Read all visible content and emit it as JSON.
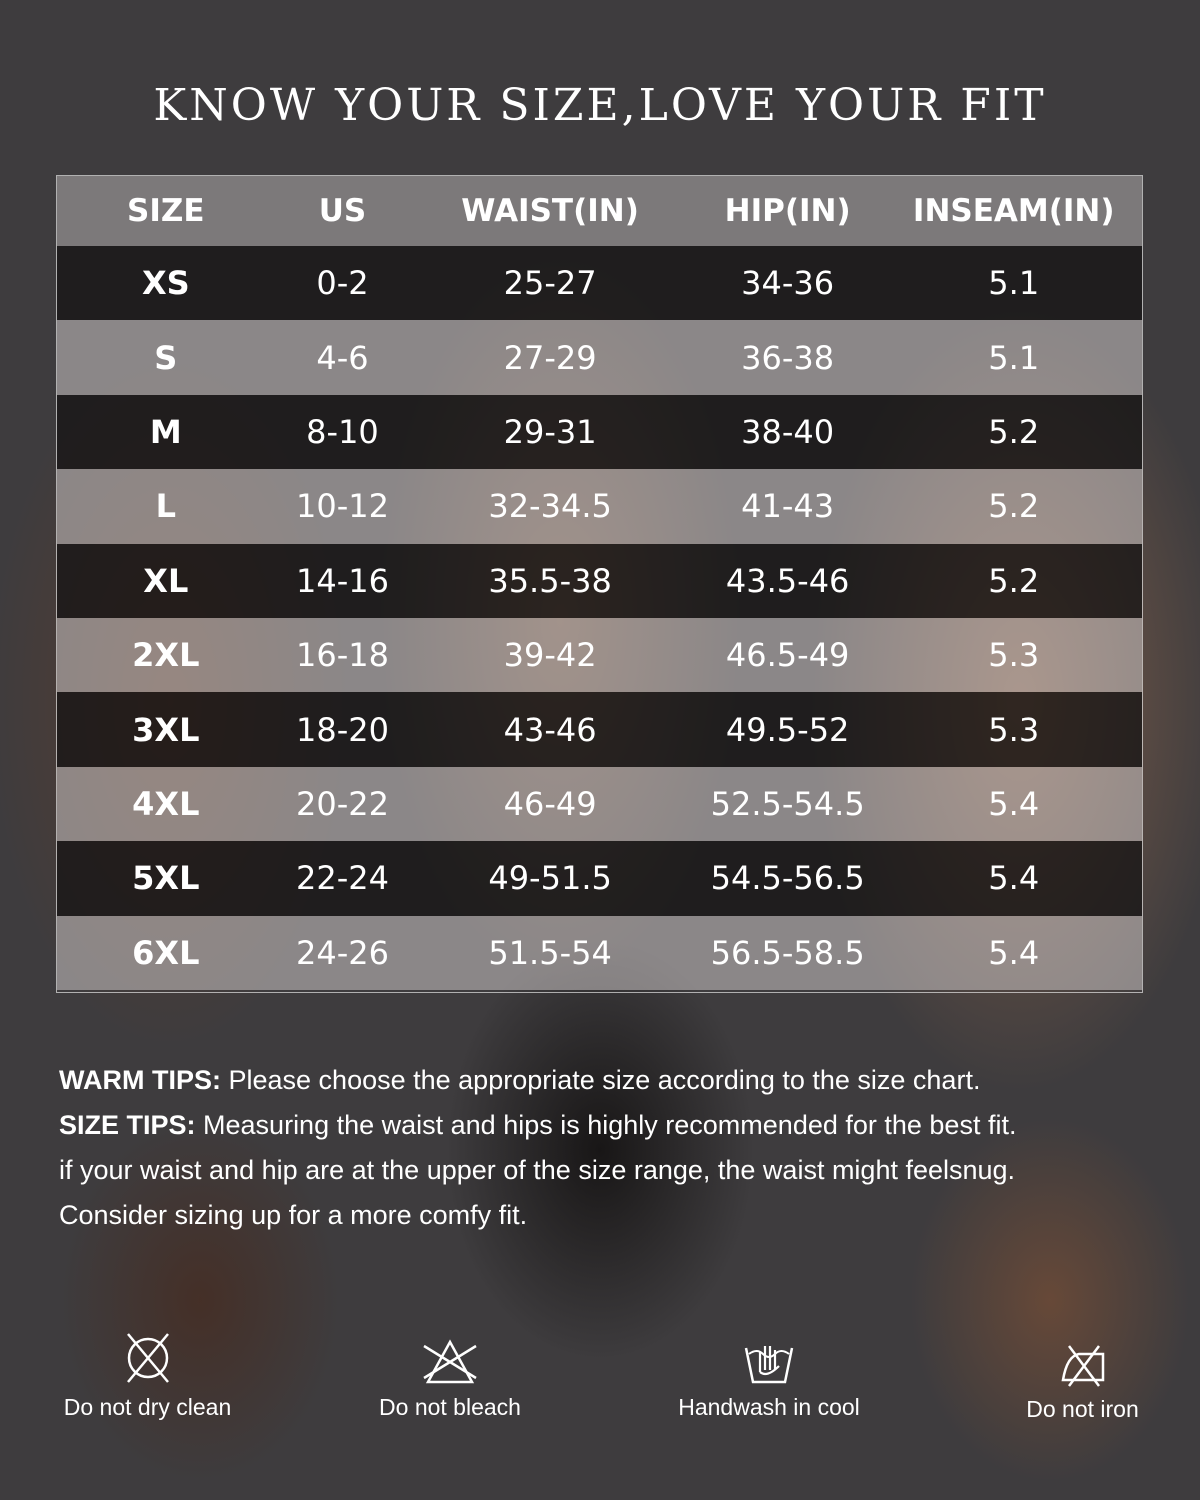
{
  "title": "KNOW YOUR SIZE,LOVE YOUR FIT",
  "table": {
    "headers": [
      "SIZE",
      "US",
      "WAIST(IN)",
      "HIP(IN)",
      "INSEAM(IN)"
    ],
    "rows": [
      [
        "XS",
        "0-2",
        "25-27",
        "34-36",
        "5.1"
      ],
      [
        "S",
        "4-6",
        "27-29",
        "36-38",
        "5.1"
      ],
      [
        "M",
        "8-10",
        "29-31",
        "38-40",
        "5.2"
      ],
      [
        "L",
        "10-12",
        "32-34.5",
        "41-43",
        "5.2"
      ],
      [
        "XL",
        "14-16",
        "35.5-38",
        "43.5-46",
        "5.2"
      ],
      [
        "2XL",
        "16-18",
        "39-42",
        "46.5-49",
        "5.3"
      ],
      [
        "3XL",
        "18-20",
        "43-46",
        "49.5-52",
        "5.3"
      ],
      [
        "4XL",
        "20-22",
        "46-49",
        "52.5-54.5",
        "5.4"
      ],
      [
        "5XL",
        "22-24",
        "49-51.5",
        "54.5-56.5",
        "5.4"
      ],
      [
        "6XL",
        "24-26",
        "51.5-54",
        "56.5-58.5",
        "5.4"
      ]
    ]
  },
  "tips": {
    "warm_label": "WARM TIPS:",
    "warm_text": " Please choose the appropriate size according to the size chart.",
    "size_label": "SIZE TIPS:",
    "size_text": " Measuring the waist and hips is highly recommended for the best fit.",
    "line3": "if your waist and hip are at the upper of the size range, the waist might feelsnug.",
    "line4": "Consider sizing up for a more comfy fit."
  },
  "care": [
    {
      "icon": "no-dry-clean-icon",
      "label": "Do not dry clean"
    },
    {
      "icon": "no-bleach-icon",
      "label": "Do not bleach"
    },
    {
      "icon": "handwash-icon",
      "label": "Handwash in cool"
    },
    {
      "icon": "no-iron-icon",
      "label": "Do not iron"
    }
  ]
}
